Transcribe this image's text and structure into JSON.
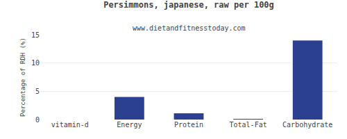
{
  "chart_data": {
    "type": "bar",
    "title": "Persimmons, japanese, raw per 100g",
    "subtitle": "www.dietandfitnesstoday.com",
    "categories": [
      "vitamin-d",
      "Energy",
      "Protein",
      "Total-Fat",
      "Carbohydrate"
    ],
    "values": [
      0,
      4.0,
      1.1,
      0.1,
      14.0
    ],
    "color": "#2b4090",
    "ylabel": "Percentage of RDH (%)",
    "ylim": [
      0,
      15
    ],
    "yticks": [
      0,
      5,
      10,
      15
    ],
    "grid": true
  }
}
